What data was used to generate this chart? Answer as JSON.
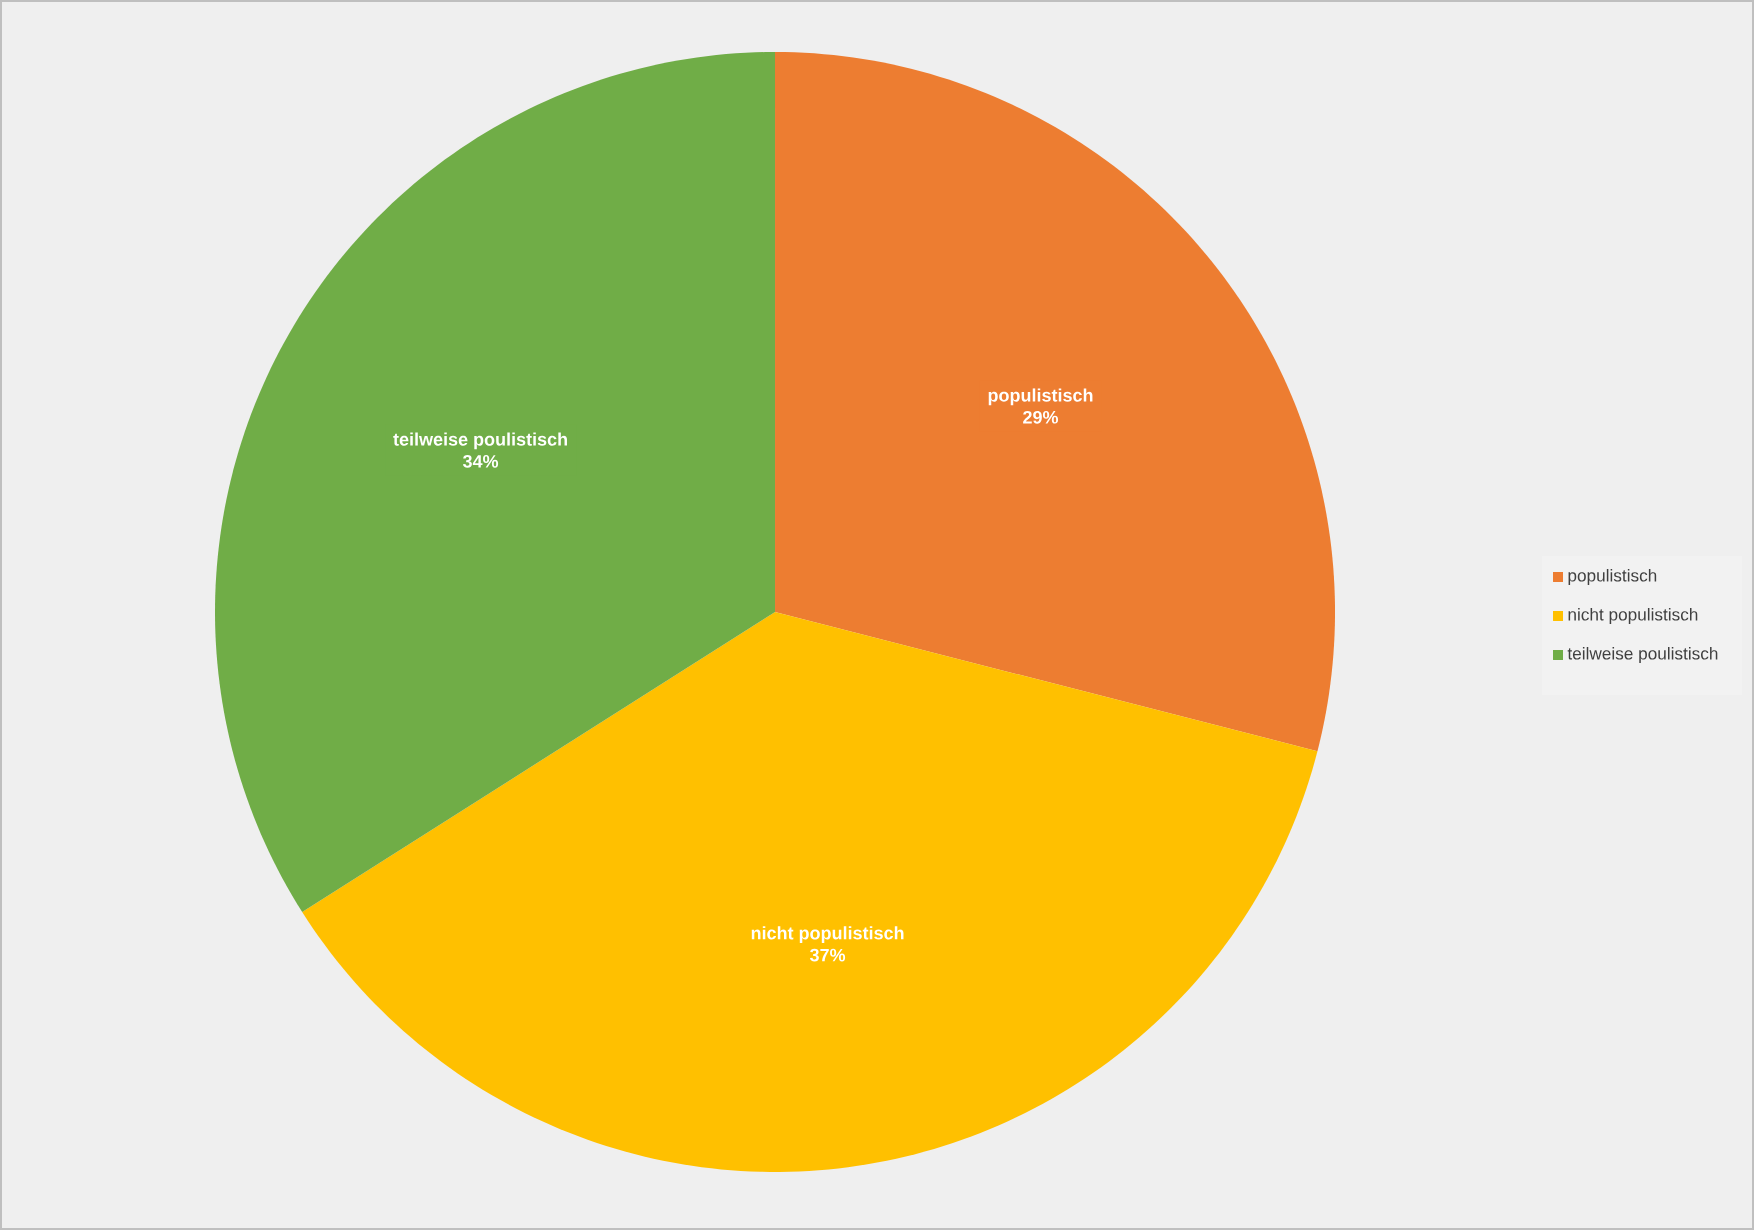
{
  "chart_data": {
    "type": "pie",
    "categories": [
      "populistisch",
      "nicht populistisch",
      "teilweise poulistisch"
    ],
    "values": [
      29,
      37,
      34
    ],
    "colors": [
      "#ed7d31",
      "#ffc000",
      "#70ad47"
    ],
    "value_labels": [
      "29%",
      "37%",
      "34%"
    ],
    "legend": "right"
  }
}
